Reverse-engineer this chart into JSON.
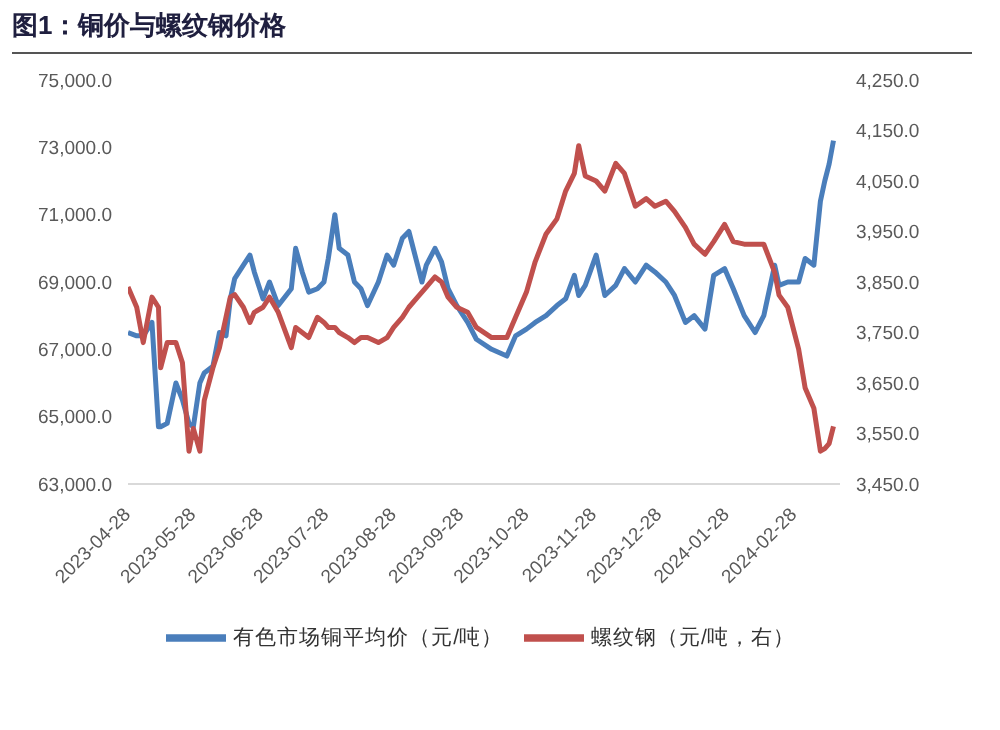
{
  "chart_data": {
    "type": "line",
    "title": "图1：铜价与螺纹钢价格",
    "x": [
      "2023-04-28",
      "2023-05-02",
      "2023-05-05",
      "2023-05-09",
      "2023-05-12",
      "2023-05-13",
      "2023-05-16",
      "2023-05-20",
      "2023-05-23",
      "2023-05-26",
      "2023-05-28",
      "2023-05-31",
      "2023-06-02",
      "2023-06-06",
      "2023-06-09",
      "2023-06-12",
      "2023-06-14",
      "2023-06-16",
      "2023-06-20",
      "2023-06-23",
      "2023-06-25",
      "2023-06-29",
      "2023-07-02",
      "2023-07-06",
      "2023-07-12",
      "2023-07-14",
      "2023-07-17",
      "2023-07-20",
      "2023-07-24",
      "2023-07-27",
      "2023-07-29",
      "2023-08-01",
      "2023-08-03",
      "2023-08-07",
      "2023-08-10",
      "2023-08-13",
      "2023-08-16",
      "2023-08-21",
      "2023-08-25",
      "2023-08-28",
      "2023-09-01",
      "2023-09-04",
      "2023-09-08",
      "2023-09-10",
      "2023-09-12",
      "2023-09-16",
      "2023-09-19",
      "2023-09-22",
      "2023-09-26",
      "2023-10-01",
      "2023-10-05",
      "2023-10-12",
      "2023-10-19",
      "2023-10-23",
      "2023-10-28",
      "2023-11-01",
      "2023-11-06",
      "2023-11-11",
      "2023-11-15",
      "2023-11-19",
      "2023-11-21",
      "2023-11-24",
      "2023-11-29",
      "2023-12-03",
      "2023-12-08",
      "2023-12-12",
      "2023-12-17",
      "2023-12-22",
      "2023-12-26",
      "2023-12-31",
      "2024-01-04",
      "2024-01-09",
      "2024-01-13",
      "2024-01-18",
      "2024-01-22",
      "2024-01-27",
      "2024-01-31",
      "2024-02-05",
      "2024-02-10",
      "2024-02-14",
      "2024-02-19",
      "2024-02-21",
      "2024-02-25",
      "2024-03-01",
      "2024-03-04",
      "2024-03-08",
      "2024-03-11",
      "2024-03-13",
      "2024-03-15",
      "2024-03-17"
    ],
    "series": [
      {
        "name": "有色市场铜平均价（元/吨）",
        "color": "#4a7ebb",
        "values": [
          67500,
          67400,
          67400,
          67800,
          64700,
          64700,
          64800,
          66000,
          65500,
          64800,
          64700,
          66000,
          66300,
          66500,
          67500,
          67400,
          68500,
          69100,
          69500,
          69800,
          69300,
          68500,
          69000,
          68300,
          68800,
          70000,
          69300,
          68700,
          68800,
          69000,
          69700,
          71000,
          70000,
          69800,
          69000,
          68800,
          68300,
          69000,
          69800,
          69500,
          70300,
          70500,
          69500,
          69000,
          69500,
          70000,
          69600,
          68800,
          68300,
          67800,
          67300,
          67000,
          66800,
          67400,
          67600,
          67800,
          68000,
          68300,
          68500,
          69200,
          68600,
          68900,
          69800,
          68600,
          68900,
          69400,
          69000,
          69500,
          69300,
          69000,
          68600,
          67800,
          68000,
          67600,
          69200,
          69400,
          68800,
          68000,
          67500,
          68000,
          69500,
          68900,
          69000,
          69000,
          69700,
          69500,
          71400,
          72000,
          72500,
          73200
        ]
      },
      {
        "name": "螺纹钢（元/吨，右）",
        "color": "#c0504d",
        "axis": "y2",
        "values": [
          3840,
          3800,
          3730,
          3820,
          3800,
          3680,
          3730,
          3730,
          3690,
          3515,
          3560,
          3515,
          3615,
          3680,
          3720,
          3780,
          3820,
          3825,
          3800,
          3770,
          3790,
          3800,
          3820,
          3790,
          3720,
          3760,
          3750,
          3740,
          3780,
          3770,
          3760,
          3760,
          3750,
          3740,
          3730,
          3740,
          3740,
          3730,
          3740,
          3760,
          3780,
          3800,
          3820,
          3830,
          3840,
          3860,
          3850,
          3820,
          3800,
          3790,
          3760,
          3740,
          3740,
          3780,
          3830,
          3890,
          3945,
          3975,
          4030,
          4065,
          4120,
          4060,
          4050,
          4030,
          4085,
          4065,
          4000,
          4015,
          4000,
          4010,
          3990,
          3958,
          3925,
          3905,
          3930,
          3964,
          3930,
          3925,
          3925,
          3925,
          3869,
          3824,
          3800,
          3717,
          3640,
          3600,
          3515,
          3520,
          3530,
          3564
        ]
      }
    ],
    "xlim": [
      "2023-04-28",
      "2024-03-20"
    ],
    "xticks": [
      "2023-04-28",
      "2023-05-28",
      "2023-06-28",
      "2023-07-28",
      "2023-08-28",
      "2023-09-28",
      "2023-10-28",
      "2023-11-28",
      "2023-12-28",
      "2024-01-28",
      "2024-02-28"
    ],
    "ylim": [
      63000,
      75000
    ],
    "yticks": [
      {
        "value": 63000,
        "label": "63,000.0"
      },
      {
        "value": 65000,
        "label": "65,000.0"
      },
      {
        "value": 67000,
        "label": "67,000.0"
      },
      {
        "value": 69000,
        "label": "69,000.0"
      },
      {
        "value": 71000,
        "label": "71,000.0"
      },
      {
        "value": 73000,
        "label": "73,000.0"
      },
      {
        "value": 75000,
        "label": "75,000.0"
      }
    ],
    "y2lim": [
      3450,
      4250
    ],
    "y2ticks": [
      {
        "value": 3450,
        "label": "3,450.0"
      },
      {
        "value": 3550,
        "label": "3,550.0"
      },
      {
        "value": 3650,
        "label": "3,650.0"
      },
      {
        "value": 3750,
        "label": "3,750.0"
      },
      {
        "value": 3850,
        "label": "3,850.0"
      },
      {
        "value": 3950,
        "label": "3,950.0"
      },
      {
        "value": 4050,
        "label": "4,050.0"
      },
      {
        "value": 4150,
        "label": "4,150.0"
      },
      {
        "value": 4250,
        "label": "4,250.0"
      }
    ],
    "grid": false,
    "legend": "bottom",
    "marker": "none",
    "line_style": "solid"
  }
}
